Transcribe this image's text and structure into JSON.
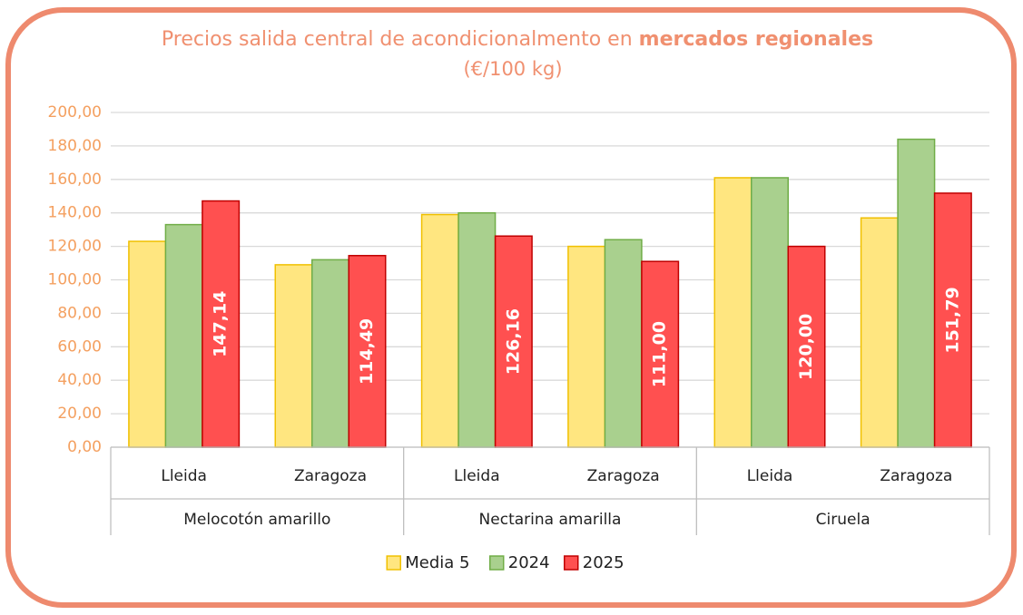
{
  "chart_data": {
    "type": "bar",
    "title": [
      "Precios salida central de acondicionalmento en",
      "mercados regionales"
    ],
    "subtitle": "(€/100 kg)",
    "categories": [
      "Lleida",
      "Zaragoza",
      "Lleida",
      "Zaragoza",
      "Lleida",
      "Zaragoza"
    ],
    "groups": [
      "Melocotón amarillo",
      "Nectarina amarilla",
      "Ciruela"
    ],
    "series": [
      {
        "name": "Media 5",
        "color": "#ffe680",
        "values": [
          123,
          109,
          139,
          120,
          161,
          137
        ]
      },
      {
        "name": "2024",
        "color": "#a9d08e",
        "values": [
          133,
          112,
          140,
          124,
          161,
          184
        ]
      },
      {
        "name": "2025",
        "color": "#ff5050",
        "values": [
          147.14,
          114.49,
          126.16,
          111.0,
          120.0,
          151.79
        ],
        "value_labels": [
          "147,14",
          "114,49",
          "126,16",
          "111,00",
          "120,00",
          "151,79"
        ]
      }
    ],
    "ylim": [
      0,
      200
    ],
    "yticks": [
      {
        "value": 0,
        "label": "0,00"
      },
      {
        "value": 20,
        "label": "20,00"
      },
      {
        "value": 40,
        "label": "40,00"
      },
      {
        "value": 60,
        "label": "60,00"
      },
      {
        "value": 80,
        "label": "80,00"
      },
      {
        "value": 100,
        "label": "100,00"
      },
      {
        "value": 120,
        "label": "120,00"
      },
      {
        "value": 140,
        "label": "140,00"
      },
      {
        "value": 160,
        "label": "160,00"
      },
      {
        "value": 180,
        "label": "180,00"
      },
      {
        "value": 200,
        "label": "200,00"
      }
    ],
    "grid": true,
    "legend": "bottom"
  }
}
